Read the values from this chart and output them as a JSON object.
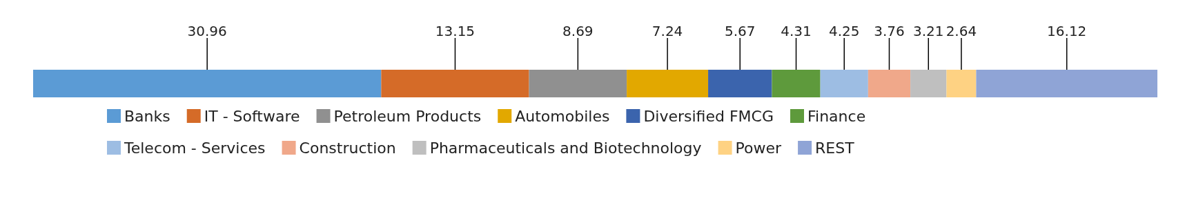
{
  "chart_data": {
    "type": "bar",
    "stacked": true,
    "orientation": "horizontal",
    "categories": [
      null
    ],
    "xlim": [
      0,
      100
    ],
    "tick_labels": false,
    "data_labels": true,
    "legend": "bottom",
    "series": [
      {
        "name": "Banks",
        "color": "#5b9bd5",
        "values": [
          30.96
        ]
      },
      {
        "name": "IT - Software",
        "color": "#d56b28",
        "values": [
          13.15
        ]
      },
      {
        "name": "Petroleum Products",
        "color": "#909090",
        "values": [
          8.69
        ]
      },
      {
        "name": "Automobiles",
        "color": "#e2a800",
        "values": [
          7.24
        ]
      },
      {
        "name": "Diversified FMCG",
        "color": "#3b64ad",
        "values": [
          5.67
        ]
      },
      {
        "name": "Finance",
        "color": "#5e9a3c",
        "values": [
          4.31
        ]
      },
      {
        "name": "Telecom - Services",
        "color": "#9dbde3",
        "values": [
          4.25
        ]
      },
      {
        "name": "Construction",
        "color": "#f0a88a",
        "values": [
          3.76
        ]
      },
      {
        "name": "Pharmaceuticals and Biotechnology",
        "color": "#bfbfbf",
        "values": [
          3.21
        ]
      },
      {
        "name": "Power",
        "color": "#fed283",
        "values": [
          2.64
        ]
      },
      {
        "name": "REST",
        "color": "#8fa4d6",
        "values": [
          16.12
        ]
      }
    ]
  }
}
